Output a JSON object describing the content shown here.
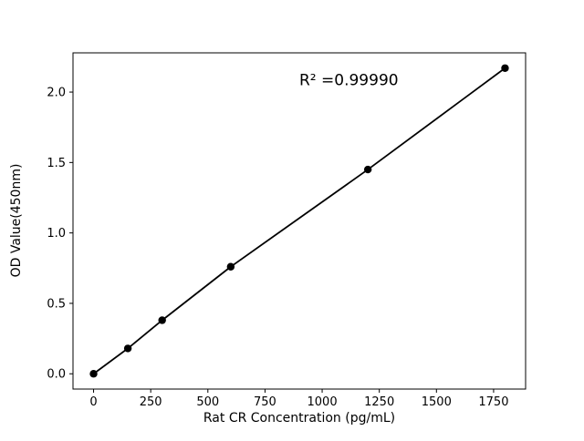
{
  "chart_data": {
    "type": "scatter",
    "title": "",
    "xlabel": "Rat CR Concentration (pg/mL)",
    "ylabel": "OD Value(450nm)",
    "x": [
      0,
      150,
      300,
      600,
      1200,
      1800
    ],
    "y": [
      0.0,
      0.18,
      0.38,
      0.76,
      1.45,
      2.17
    ],
    "line_through_points": true,
    "line_color": "#000000",
    "marker_color": "#000000",
    "grid": false,
    "legend": null,
    "xlim": [
      -90,
      1890
    ],
    "ylim": [
      -0.1085,
      2.2785
    ],
    "x_tick_values": [
      0,
      250,
      500,
      750,
      1000,
      1250,
      1500,
      1750
    ],
    "x_tick_labels": [
      "0",
      "250",
      "500",
      "750",
      "1000",
      "1250",
      "1500",
      "1750"
    ],
    "y_tick_values": [
      0.0,
      0.5,
      1.0,
      1.5,
      2.0
    ],
    "y_tick_labels": [
      "0.0",
      "0.5",
      "1.0",
      "1.5",
      "2.0"
    ],
    "annotation": {
      "text": "R² =0.99990",
      "x": 900,
      "y": 2.05
    }
  }
}
